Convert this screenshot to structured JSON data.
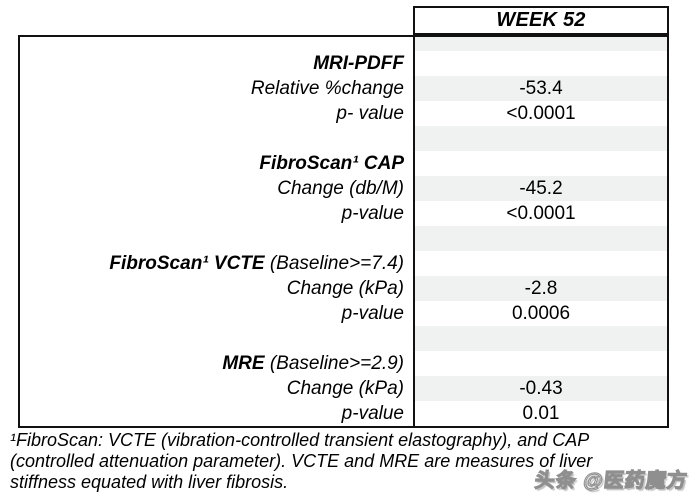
{
  "table": {
    "column_header": "WEEK 52",
    "rows": [
      {
        "type": "spacer",
        "label": "",
        "value": ""
      },
      {
        "type": "section",
        "label": "MRI-PDFF",
        "suffix": "",
        "value": ""
      },
      {
        "type": "data",
        "label": "Relative %change",
        "value": "-53.4"
      },
      {
        "type": "data",
        "label": "p- value",
        "value": "<0.0001"
      },
      {
        "type": "spacer",
        "label": "",
        "value": ""
      },
      {
        "type": "section",
        "label": "FibroScan¹ CAP",
        "suffix": "",
        "value": ""
      },
      {
        "type": "data",
        "label": "Change (db/M)",
        "value": "-45.2"
      },
      {
        "type": "data",
        "label": "p-value",
        "value": "<0.0001"
      },
      {
        "type": "spacer",
        "label": "",
        "value": ""
      },
      {
        "type": "section",
        "label": "FibroScan¹ VCTE",
        "suffix": " (Baseline>=7.4)",
        "value": ""
      },
      {
        "type": "data",
        "label": "Change (kPa)",
        "value": "-2.8"
      },
      {
        "type": "data",
        "label": "p-value",
        "value": "0.0006"
      },
      {
        "type": "spacer",
        "label": "",
        "value": ""
      },
      {
        "type": "section",
        "label": "MRE",
        "suffix": " (Baseline>=2.9)",
        "value": ""
      },
      {
        "type": "data",
        "label": "Change (kPa)",
        "value": "-0.43"
      },
      {
        "type": "data",
        "label": "p-value",
        "value": "0.01"
      }
    ]
  },
  "footnote": {
    "lines": [
      "¹FibroScan: VCTE (vibration-controlled transient elastography), and CAP",
      "(controlled attenuation parameter). VCTE and MRE are measures of liver",
      "stiffness equated with liver fibrosis."
    ]
  },
  "watermark": {
    "text": "头条 @医药魔方"
  },
  "colors": {
    "band_gray": "#f0f1f1",
    "border_black": "#111111",
    "watermark_gray": "#8f8f8f"
  }
}
